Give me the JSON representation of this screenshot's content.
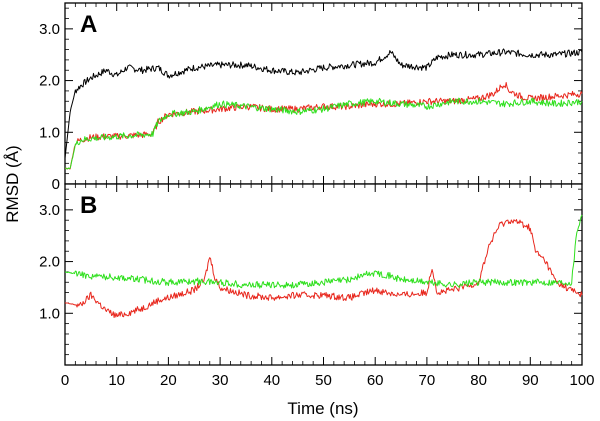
{
  "chart_data": [
    {
      "type": "line",
      "panel_label": "A",
      "xlim": [
        0,
        100
      ],
      "ylim": [
        0,
        3.5
      ],
      "y_ticks": [
        "0",
        "1.0",
        "2.0",
        "3.0"
      ],
      "y_tick_values": [
        0,
        1.0,
        2.0,
        3.0
      ],
      "x_ticks": [],
      "series": [
        {
          "color": "#000000",
          "x": [
            0,
            1,
            2,
            3,
            5,
            8,
            10,
            12,
            15,
            18,
            20,
            25,
            30,
            35,
            40,
            45,
            50,
            55,
            60,
            63,
            65,
            70,
            72,
            75,
            80,
            85,
            90,
            95,
            100
          ],
          "y": [
            0.5,
            1.4,
            1.8,
            1.9,
            2.05,
            2.2,
            2.1,
            2.25,
            2.2,
            2.25,
            2.1,
            2.25,
            2.3,
            2.3,
            2.2,
            2.15,
            2.25,
            2.3,
            2.35,
            2.55,
            2.3,
            2.25,
            2.45,
            2.5,
            2.5,
            2.55,
            2.5,
            2.5,
            2.55
          ]
        },
        {
          "color": "#e8281e",
          "x": [
            0,
            1,
            2,
            3,
            5,
            8,
            10,
            15,
            17,
            18,
            20,
            25,
            30,
            35,
            40,
            45,
            50,
            55,
            60,
            65,
            70,
            75,
            80,
            83,
            85,
            86,
            88,
            90,
            95,
            100
          ],
          "y": [
            0.3,
            0.3,
            0.8,
            0.85,
            0.9,
            0.92,
            0.92,
            0.95,
            0.97,
            1.2,
            1.35,
            1.4,
            1.45,
            1.5,
            1.45,
            1.45,
            1.5,
            1.5,
            1.55,
            1.55,
            1.6,
            1.6,
            1.65,
            1.75,
            1.95,
            1.8,
            1.7,
            1.65,
            1.7,
            1.75
          ]
        },
        {
          "color": "#2fe01e",
          "x": [
            0,
            1,
            2,
            3,
            5,
            8,
            10,
            15,
            17,
            18,
            20,
            25,
            30,
            35,
            40,
            45,
            50,
            55,
            60,
            65,
            70,
            75,
            80,
            85,
            90,
            95,
            100
          ],
          "y": [
            0.3,
            0.3,
            0.75,
            0.85,
            0.88,
            0.9,
            0.92,
            0.95,
            0.97,
            1.2,
            1.35,
            1.4,
            1.55,
            1.5,
            1.45,
            1.4,
            1.45,
            1.55,
            1.6,
            1.55,
            1.5,
            1.6,
            1.6,
            1.55,
            1.6,
            1.55,
            1.6
          ]
        }
      ]
    },
    {
      "type": "line",
      "panel_label": "B",
      "xlim": [
        0,
        100
      ],
      "ylim": [
        0,
        3.5
      ],
      "xlabel": "Time (ns)",
      "y_ticks": [
        "1.0",
        "2.0",
        "3.0"
      ],
      "y_tick_values": [
        1.0,
        2.0,
        3.0
      ],
      "x_ticks": [
        "0",
        "10",
        "20",
        "30",
        "40",
        "50",
        "60",
        "70",
        "80",
        "90",
        "100"
      ],
      "x_tick_values": [
        0,
        10,
        20,
        30,
        40,
        50,
        60,
        70,
        80,
        90,
        100
      ],
      "series": [
        {
          "color": "#e8281e",
          "x": [
            0,
            3,
            5,
            8,
            10,
            12,
            15,
            18,
            20,
            25,
            27,
            28,
            29,
            30,
            35,
            40,
            45,
            50,
            55,
            60,
            65,
            70,
            71,
            72,
            75,
            80,
            82,
            84,
            86,
            88,
            90,
            91,
            93,
            95,
            97,
            100
          ],
          "y": [
            1.2,
            1.15,
            1.35,
            1.05,
            0.95,
            1.0,
            1.1,
            1.25,
            1.3,
            1.45,
            1.65,
            2.1,
            1.7,
            1.5,
            1.35,
            1.3,
            1.35,
            1.35,
            1.3,
            1.45,
            1.35,
            1.4,
            1.9,
            1.4,
            1.45,
            1.6,
            2.3,
            2.7,
            2.8,
            2.75,
            2.65,
            2.2,
            2.0,
            1.6,
            1.5,
            1.35
          ]
        },
        {
          "color": "#2fe01e",
          "x": [
            0,
            5,
            10,
            15,
            20,
            25,
            30,
            35,
            40,
            45,
            50,
            55,
            58,
            60,
            62,
            65,
            70,
            75,
            80,
            85,
            90,
            95,
            98,
            99,
            100
          ],
          "y": [
            1.8,
            1.72,
            1.7,
            1.65,
            1.6,
            1.62,
            1.6,
            1.55,
            1.55,
            1.55,
            1.6,
            1.65,
            1.75,
            1.78,
            1.75,
            1.65,
            1.6,
            1.55,
            1.6,
            1.6,
            1.6,
            1.6,
            1.6,
            2.6,
            2.9
          ]
        }
      ]
    }
  ],
  "ylabel": "RMSD (Å)"
}
